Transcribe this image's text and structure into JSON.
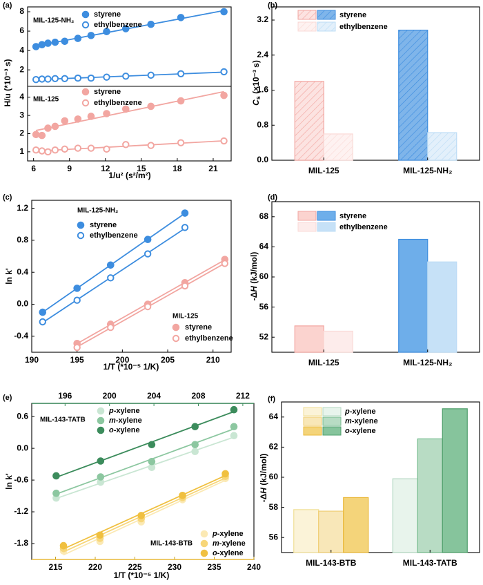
{
  "colors": {
    "blue": "#3d8ddf",
    "blue_light": "#bcdcf5",
    "pink": "#f2a6a1",
    "pink_light": "#fadad7",
    "green": "#3c8c5c",
    "green_mid": "#8cc7a0",
    "green_light": "#c9e6d3",
    "yellow": "#f0c040",
    "yellow_mid": "#f7d679",
    "yellow_light": "#fbe9b4"
  },
  "chart_data": [
    {
      "panel": "(a)",
      "type": "scatter",
      "xlabel": "1/u² (s²/m²)",
      "ylabel": "H/u (*10⁻³ s)",
      "xlim": [
        5.5,
        22.5
      ],
      "xticks": [
        "6",
        "9",
        "12",
        "15",
        "18",
        "21"
      ],
      "top": {
        "label": "MIL-125-NH₂",
        "ylim": [
          0.3,
          8.5
        ],
        "yticks": [
          "2",
          "4",
          "6",
          "8"
        ],
        "legend": [
          "styrene",
          "ethylbenzene"
        ],
        "series": [
          {
            "name": "styrene",
            "x": [
              6.2,
              6.7,
              7.2,
              7.8,
              8.6,
              9.7,
              10.8,
              12.1,
              13.7,
              15.8,
              18.3,
              21.9
            ],
            "y": [
              4.4,
              4.6,
              4.75,
              4.85,
              4.95,
              5.25,
              5.55,
              5.95,
              6.25,
              6.7,
              7.4,
              8.0
            ],
            "fit": [
              4.35,
              8.0
            ]
          },
          {
            "name": "ethylbenzene",
            "x": [
              6.2,
              6.7,
              7.2,
              7.8,
              8.6,
              9.7,
              10.8,
              12.1,
              13.7,
              15.8,
              18.3,
              21.9
            ],
            "y": [
              1.0,
              1.05,
              1.05,
              1.1,
              1.1,
              1.15,
              1.15,
              1.25,
              1.35,
              1.45,
              1.6,
              1.8
            ],
            "fit": [
              0.97,
              1.8
            ]
          }
        ]
      },
      "bottom": {
        "label": "MIL-125",
        "ylim": [
          0.5,
          4.6
        ],
        "yticks": [
          "1",
          "2",
          "3",
          "4"
        ],
        "legend": [
          "styrene",
          "ethylbenzene"
        ],
        "series": [
          {
            "name": "styrene",
            "x": [
              6.2,
              6.7,
              7.2,
              7.8,
              8.6,
              9.7,
              10.8,
              12.1,
              13.7,
              15.8,
              18.3,
              21.9
            ],
            "y": [
              1.95,
              1.9,
              2.3,
              2.4,
              2.7,
              2.8,
              2.95,
              3.1,
              3.35,
              3.5,
              3.8,
              4.1
            ],
            "fit": [
              1.95,
              4.22
            ]
          },
          {
            "name": "ethylbenzene",
            "x": [
              6.2,
              6.7,
              7.2,
              7.8,
              8.6,
              9.7,
              10.8,
              12.1,
              13.7,
              15.8,
              18.3,
              21.9
            ],
            "y": [
              1.1,
              1.05,
              1.0,
              1.1,
              1.15,
              1.2,
              1.2,
              1.15,
              1.4,
              1.35,
              1.5,
              1.6
            ],
            "fit": [
              1.0,
              1.6
            ]
          }
        ]
      }
    },
    {
      "panel": "(b)",
      "type": "bar",
      "ylabel": "Cs (×10⁻³ s)",
      "ylabel_main": "C",
      "ylabel_sub": "s",
      "ylabel_rest": " (×10⁻³ s)",
      "ylim": [
        0,
        3.5
      ],
      "yticks": [
        "0.0",
        "0.8",
        "1.6",
        "2.4",
        "3.2"
      ],
      "categories": [
        "MIL-125",
        "MIL-125-NH₂"
      ],
      "legend": [
        "styrene",
        "ethylbenzene"
      ],
      "series": [
        {
          "name": "styrene",
          "values": [
            1.8,
            2.97
          ]
        },
        {
          "name": "ethylbenzene",
          "values": [
            0.6,
            0.63
          ]
        }
      ]
    },
    {
      "panel": "(c)",
      "type": "scatter",
      "xlabel": "1/T (*10⁻⁵ 1/K)",
      "ylabel": "ln k'",
      "xlim": [
        190,
        212
      ],
      "ylim": [
        -0.6,
        1.3
      ],
      "xticks": [
        "190",
        "195",
        "200",
        "205",
        "210"
      ],
      "yticks": [
        "-0.4",
        "0.0",
        "0.4",
        "0.8",
        "1.2"
      ],
      "groups": [
        {
          "label": "MIL-125-NH₂",
          "legend": [
            "styrene",
            "ethylbenzene"
          ],
          "series": [
            {
              "name": "styrene",
              "x": [
                191.2,
                195.0,
                198.7,
                202.8,
                206.9
              ],
              "y": [
                -0.1,
                0.2,
                0.49,
                0.81,
                1.14
              ]
            },
            {
              "name": "ethylbenzene",
              "x": [
                191.2,
                195.0,
                198.7,
                202.8,
                206.9
              ],
              "y": [
                -0.22,
                0.05,
                0.33,
                0.63,
                0.96
              ]
            }
          ]
        },
        {
          "label": "MIL-125",
          "legend": [
            "styrene",
            "ethylbenzene"
          ],
          "series": [
            {
              "name": "styrene",
              "x": [
                195.0,
                198.7,
                202.8,
                206.9,
                211.3
              ],
              "y": [
                -0.49,
                -0.25,
                0.0,
                0.27,
                0.56
              ]
            },
            {
              "name": "ethylbenzene",
              "x": [
                195.0,
                198.7,
                202.8,
                206.9,
                211.3
              ],
              "y": [
                -0.54,
                -0.29,
                -0.03,
                0.23,
                0.51
              ]
            }
          ]
        }
      ]
    },
    {
      "panel": "(d)",
      "type": "bar",
      "ylabel": "-ΔH (kJ/mol)",
      "ylabel_main": "-Δ",
      "ylabel_ital": "H",
      "ylabel_rest": " (kJ/mol)",
      "ylim": [
        50,
        70
      ],
      "yticks": [
        "52",
        "56",
        "60",
        "64",
        "68"
      ],
      "categories": [
        "MIL-125",
        "MIL-125-NH₂"
      ],
      "legend": [
        "styrene",
        "ethylbenzene"
      ],
      "series": [
        {
          "name": "styrene",
          "values": [
            53.5,
            65.0
          ]
        },
        {
          "name": "ethylbenzene",
          "values": [
            52.8,
            62.0
          ]
        }
      ]
    },
    {
      "panel": "(e)",
      "type": "scatter",
      "xlabel": "1/T (*10⁻⁵ 1/K)",
      "ylabel": "ln k'",
      "xlim_bottom": [
        212,
        240
      ],
      "xticks_bottom": [
        "215",
        "220",
        "225",
        "230",
        "235",
        "240"
      ],
      "xlim_top": [
        193,
        213
      ],
      "xticks_top": [
        "196",
        "200",
        "204",
        "208",
        "212"
      ],
      "ylim": [
        -2.1,
        0.85
      ],
      "yticks": [
        "-1.8",
        "-1.2",
        "-0.6",
        "0.0",
        "0.6"
      ],
      "groups": [
        {
          "label": "MIL-143-TATB",
          "axis": "top",
          "legend": [
            "p-xylene",
            "m-xylene",
            "o-xylene"
          ],
          "series": [
            {
              "name": "p-xylene",
              "x": [
                195.2,
                199.2,
                203.8,
                207.7,
                211.2
              ],
              "y": [
                -0.94,
                -0.64,
                -0.36,
                -0.06,
                0.24
              ]
            },
            {
              "name": "m-xylene",
              "x": [
                195.2,
                199.2,
                203.8,
                207.7,
                211.2
              ],
              "y": [
                -0.85,
                -0.54,
                -0.25,
                0.07,
                0.41
              ]
            },
            {
              "name": "o-xylene",
              "x": [
                195.2,
                199.2,
                203.8,
                207.7,
                211.2
              ],
              "y": [
                -0.52,
                -0.24,
                0.07,
                0.41,
                0.73
              ]
            }
          ]
        },
        {
          "label": "MIL-143-BTB",
          "axis": "bottom",
          "legend": [
            "p-xylene",
            "m-xylene",
            "o-xylene"
          ],
          "series": [
            {
              "name": "p-xylene",
              "x": [
                216.0,
                220.6,
                225.8,
                231.0,
                236.4
              ],
              "y": [
                -1.94,
                -1.76,
                -1.39,
                -0.97,
                -0.57
              ]
            },
            {
              "name": "m-xylene",
              "x": [
                216.0,
                220.6,
                225.8,
                231.0,
                236.4
              ],
              "y": [
                -1.89,
                -1.7,
                -1.33,
                -0.93,
                -0.53
              ]
            },
            {
              "name": "o-xylene",
              "x": [
                216.0,
                220.6,
                225.8,
                231.0,
                236.4
              ],
              "y": [
                -1.84,
                -1.64,
                -1.27,
                -0.89,
                -0.48
              ]
            }
          ]
        }
      ]
    },
    {
      "panel": "(f)",
      "type": "bar",
      "ylabel": "-ΔH (kJ/mol)",
      "ylabel_main": "-Δ",
      "ylabel_ital": "H",
      "ylabel_rest": " (kJ/mol)",
      "ylim": [
        55,
        65
      ],
      "yticks": [
        "56",
        "58",
        "60",
        "62",
        "64"
      ],
      "categories": [
        "MIL-143-BTB",
        "MIL-143-TATB"
      ],
      "legend": [
        "p-xylene",
        "m-xylene",
        "o-xylene"
      ],
      "series": [
        {
          "name": "p-xylene",
          "values": [
            57.85,
            59.9
          ]
        },
        {
          "name": "m-xylene",
          "values": [
            57.75,
            62.55
          ]
        },
        {
          "name": "o-xylene",
          "values": [
            58.65,
            64.55
          ]
        }
      ]
    }
  ]
}
